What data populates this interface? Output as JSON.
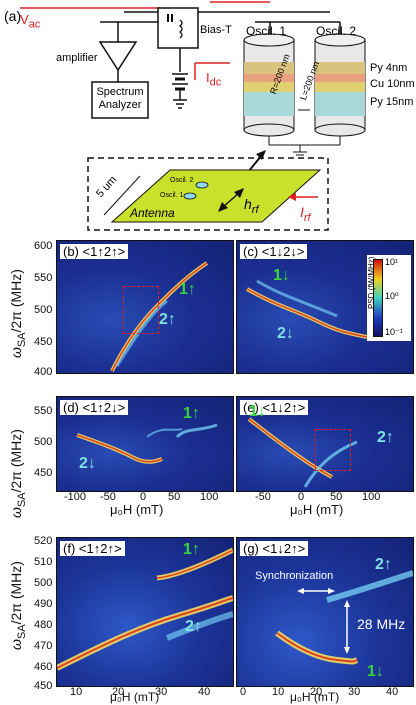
{
  "schematic": {
    "panel_label": "(a)",
    "vac": "V",
    "vac_sub": "ac",
    "amplifier": "amplifier",
    "spectrum_analyzer": "Spectrum Analyzer",
    "bias_t": "Bias-T",
    "idc": "I",
    "idc_sub": "dc",
    "oscil1": "Oscil. 1",
    "oscil2": "Oscil. 2",
    "r_label": "R=200 nm",
    "l_label": "L=200 nm",
    "py_top": "Py 4nm",
    "cu": "Cu 10nm",
    "py_bottom": "Py 15nm",
    "dim": "5 um",
    "small_osc2": "Oscil. 2",
    "small_osc1": "Oscil. 1",
    "antenna": "Antenna",
    "hrf": "h",
    "hrf_sub": "rf",
    "irf": "I",
    "irf_sub": "rf"
  },
  "panels": {
    "b": {
      "label": "(b)",
      "state": "<1↑2↑>",
      "state_top": "1↑",
      "state_bottom": "2↑"
    },
    "c": {
      "label": "(c)",
      "state": "<1↓2↓>",
      "state_top": "1↓",
      "state_bottom": "2↓"
    },
    "d": {
      "label": "(d)",
      "state": "<1↑2↓>",
      "state_top": "1↑",
      "state_bottom": "2↓"
    },
    "e": {
      "label": "(e)",
      "state": "<1↓2↑>",
      "state_top": "1↓",
      "state_bottom": "2↑"
    },
    "f": {
      "label": "(f)",
      "state": "<1↑2↑>",
      "state_top": "1↑",
      "state_bottom": "2↑"
    },
    "g": {
      "label": "(g)",
      "state": "<1↓2↑>",
      "state_top": "2↑",
      "state_bottom": "1↓",
      "sync": "Synchronization",
      "gap": "28 MHz"
    }
  },
  "colorbar": {
    "label": "PSD (fW/MHz)",
    "ticks": [
      "10¹",
      "10⁰",
      "10⁻¹"
    ]
  },
  "axes": {
    "ylabel": "ω",
    "ylabel_sub": "SA",
    "ylabel_rest": "/2π (MHz)",
    "xlabel": "μ₀H (mT)",
    "top_yticks": [
      "600",
      "550",
      "500",
      "450",
      "400"
    ],
    "mid_yticks": [
      "550",
      "500",
      "450"
    ],
    "mid_xticks": [
      "-100",
      "-50",
      "0",
      "50",
      "100"
    ],
    "mid_xticks_right": [
      "-50",
      "0",
      "50",
      "100"
    ],
    "bot_yticks": [
      "520",
      "510",
      "500",
      "490",
      "480",
      "470",
      "460",
      "450"
    ],
    "bot_xticks_left": [
      "10",
      "20",
      "30",
      "40"
    ],
    "bot_xticks_right": [
      "0",
      "10",
      "20",
      "30",
      "40"
    ]
  },
  "colors": {
    "accent_red": "#e02020",
    "green_state": "#3ad43a",
    "cyan_state": "#7fe2e6",
    "map_bg": "#1b2f92"
  }
}
